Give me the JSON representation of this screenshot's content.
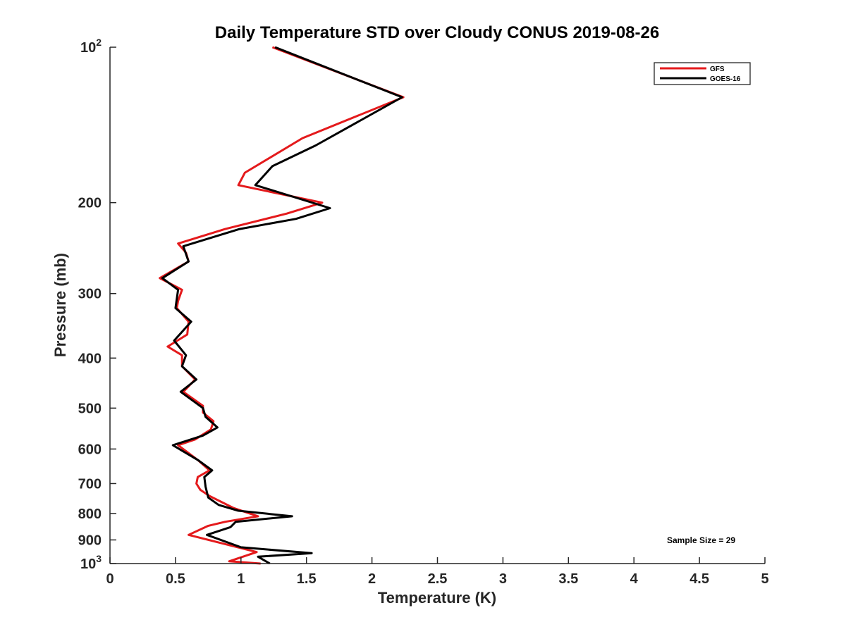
{
  "chart_data": {
    "type": "line",
    "title": "Daily Temperature STD over Cloudy CONUS 2019-08-26",
    "xlabel": "Temperature (K)",
    "ylabel": "Pressure (mb)",
    "xlim": [
      0,
      5
    ],
    "ylim": [
      100,
      1000
    ],
    "yscale": "log",
    "y_reversed": true,
    "grid": false,
    "legend_position": "top-right",
    "x_ticks": [
      {
        "value": 0,
        "label": "0"
      },
      {
        "value": 0.5,
        "label": "0.5"
      },
      {
        "value": 1,
        "label": "1"
      },
      {
        "value": 1.5,
        "label": "1.5"
      },
      {
        "value": 2,
        "label": "2"
      },
      {
        "value": 2.5,
        "label": "2.5"
      },
      {
        "value": 3,
        "label": "3"
      },
      {
        "value": 3.5,
        "label": "3.5"
      },
      {
        "value": 4,
        "label": "4"
      },
      {
        "value": 4.5,
        "label": "4.5"
      },
      {
        "value": 5,
        "label": "5"
      }
    ],
    "y_ticks": [
      {
        "value": 100,
        "label": "10",
        "sup": "2"
      },
      {
        "value": 200,
        "label": "200",
        "sup": ""
      },
      {
        "value": 300,
        "label": "300",
        "sup": ""
      },
      {
        "value": 400,
        "label": "400",
        "sup": ""
      },
      {
        "value": 500,
        "label": "500",
        "sup": ""
      },
      {
        "value": 600,
        "label": "600",
        "sup": ""
      },
      {
        "value": 700,
        "label": "700",
        "sup": ""
      },
      {
        "value": 800,
        "label": "800",
        "sup": ""
      },
      {
        "value": 900,
        "label": "900",
        "sup": ""
      },
      {
        "value": 1000,
        "label": "10",
        "sup": "3"
      }
    ],
    "series": [
      {
        "name": "GFS",
        "color": "#e41a1c",
        "points": [
          [
            1.24,
            100
          ],
          [
            2.24,
            125
          ],
          [
            1.47,
            150
          ],
          [
            1.03,
            175
          ],
          [
            0.98,
            185
          ],
          [
            1.62,
            200
          ],
          [
            1.35,
            210
          ],
          [
            0.88,
            225
          ],
          [
            0.52,
            240
          ],
          [
            0.58,
            250
          ],
          [
            0.6,
            260
          ],
          [
            0.38,
            280
          ],
          [
            0.55,
            295
          ],
          [
            0.52,
            310
          ],
          [
            0.51,
            320
          ],
          [
            0.6,
            340
          ],
          [
            0.59,
            360
          ],
          [
            0.44,
            380
          ],
          [
            0.55,
            395
          ],
          [
            0.55,
            415
          ],
          [
            0.65,
            440
          ],
          [
            0.56,
            465
          ],
          [
            0.71,
            495
          ],
          [
            0.71,
            510
          ],
          [
            0.79,
            530
          ],
          [
            0.77,
            550
          ],
          [
            0.65,
            575
          ],
          [
            0.52,
            590
          ],
          [
            0.67,
            630
          ],
          [
            0.76,
            660
          ],
          [
            0.67,
            680
          ],
          [
            0.66,
            700
          ],
          [
            0.69,
            720
          ],
          [
            0.76,
            740
          ],
          [
            0.94,
            780
          ],
          [
            1.13,
            810
          ],
          [
            0.88,
            830
          ],
          [
            0.75,
            845
          ],
          [
            0.6,
            880
          ],
          [
            1.12,
            950
          ],
          [
            0.91,
            990
          ],
          [
            1.15,
            1000
          ]
        ]
      },
      {
        "name": "GOES-16",
        "color": "#000000",
        "points": [
          [
            1.26,
            100
          ],
          [
            2.23,
            125
          ],
          [
            1.57,
            155
          ],
          [
            1.24,
            170
          ],
          [
            1.11,
            185
          ],
          [
            1.68,
            205
          ],
          [
            1.42,
            215
          ],
          [
            0.99,
            225
          ],
          [
            0.56,
            243
          ],
          [
            0.6,
            260
          ],
          [
            0.4,
            280
          ],
          [
            0.52,
            295
          ],
          [
            0.5,
            320
          ],
          [
            0.62,
            340
          ],
          [
            0.49,
            370
          ],
          [
            0.58,
            395
          ],
          [
            0.55,
            415
          ],
          [
            0.66,
            440
          ],
          [
            0.54,
            465
          ],
          [
            0.71,
            500
          ],
          [
            0.73,
            520
          ],
          [
            0.82,
            545
          ],
          [
            0.71,
            565
          ],
          [
            0.48,
            590
          ],
          [
            0.67,
            630
          ],
          [
            0.78,
            660
          ],
          [
            0.72,
            680
          ],
          [
            0.73,
            710
          ],
          [
            0.75,
            745
          ],
          [
            0.83,
            770
          ],
          [
            0.98,
            790
          ],
          [
            1.39,
            810
          ],
          [
            0.96,
            830
          ],
          [
            0.92,
            850
          ],
          [
            0.74,
            880
          ],
          [
            1.0,
            930
          ],
          [
            1.54,
            955
          ],
          [
            1.13,
            970
          ],
          [
            1.22,
            1000
          ]
        ]
      }
    ],
    "annotation": "Sample Size = 29"
  }
}
